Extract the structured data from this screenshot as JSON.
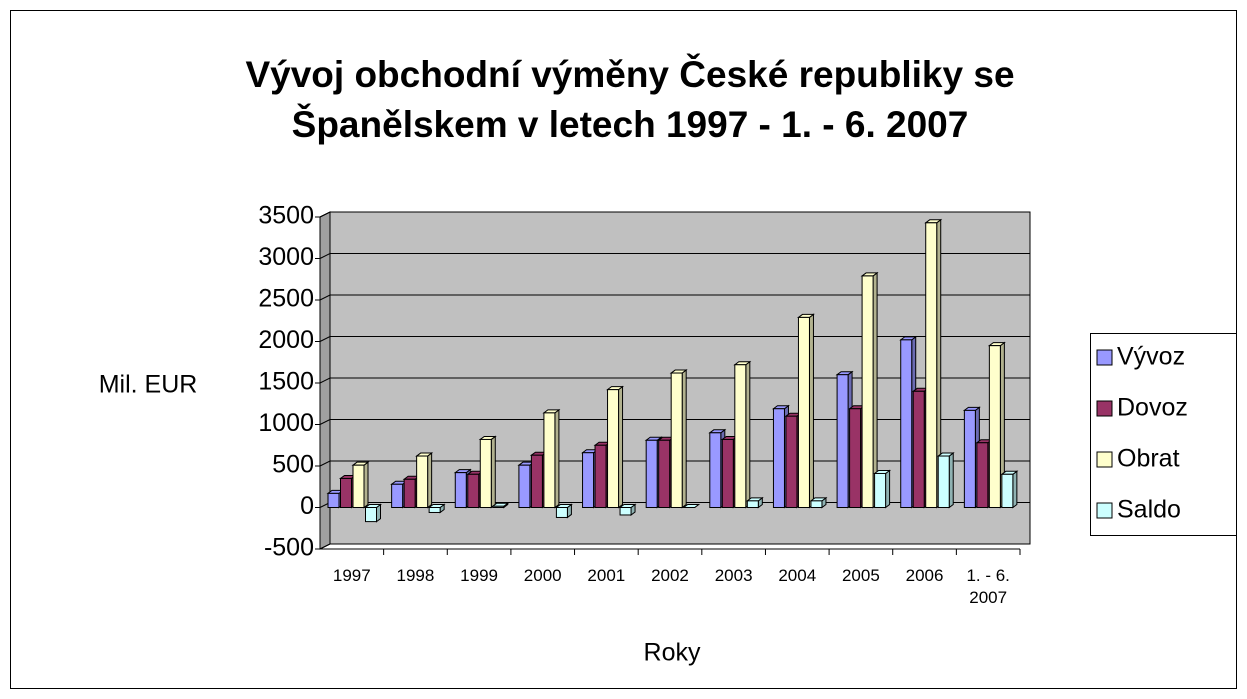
{
  "chart_data": {
    "type": "bar",
    "title": "Vývoj obchodní výměny České republiky se Španělskem v letech 1997 - 1. - 6. 2007",
    "xlabel": "Roky",
    "ylabel": "Mil. EUR",
    "categories": [
      "1997",
      "1998",
      "1999",
      "2000",
      "2001",
      "2002",
      "2003",
      "2004",
      "2005",
      "2006",
      "1. - 6. 2007"
    ],
    "series": [
      {
        "name": "Vývoz",
        "color": "#9999ff",
        "values": [
          170,
          280,
          420,
          510,
          660,
          810,
          900,
          1190,
          1600,
          2020,
          1170
        ]
      },
      {
        "name": "Dovoz",
        "color": "#993366",
        "values": [
          350,
          340,
          400,
          630,
          750,
          810,
          820,
          1100,
          1190,
          1400,
          780
        ]
      },
      {
        "name": "Obrat",
        "color": "#ffffcc",
        "values": [
          510,
          620,
          820,
          1140,
          1420,
          1620,
          1720,
          2290,
          2790,
          3430,
          1950
        ]
      },
      {
        "name": "Saldo",
        "color": "#ccffff",
        "values": [
          -170,
          -60,
          15,
          -120,
          -90,
          0,
          80,
          80,
          410,
          620,
          400
        ]
      }
    ],
    "ylim": [
      -500,
      3500
    ],
    "yticks": [
      -500,
      0,
      500,
      1000,
      1500,
      2000,
      2500,
      3000,
      3500
    ],
    "grid": true,
    "legend": "right"
  }
}
